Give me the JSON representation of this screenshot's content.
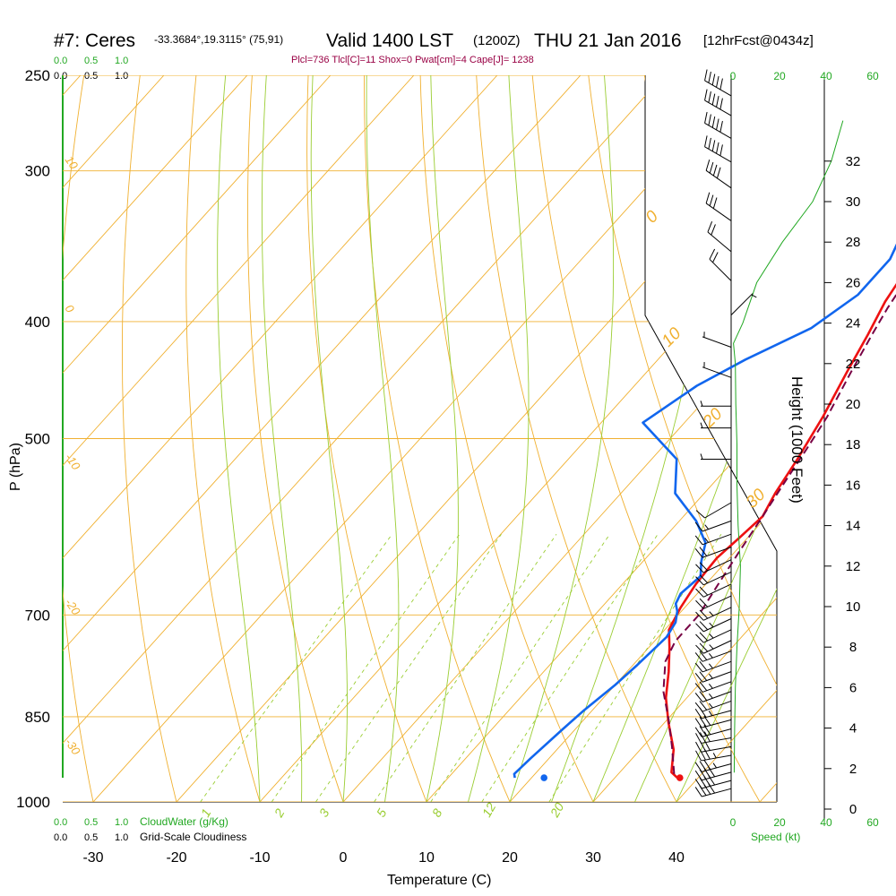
{
  "header": {
    "station": "#7: Ceres",
    "coords": "-33.3684°,19.3115° (75,91)",
    "valid": "Valid 1400 LST",
    "zulu": "(1200Z)",
    "date": "THU 21 Jan 2016",
    "fcst": "[12hrFcst@0434z]",
    "indices": "Plcl=736 Tlcl[C]=11 Shox=0 Pwat[cm]=4 Cape[J]= 1238"
  },
  "labels": {
    "cw_top_0": "0.0",
    "cw_top_1": "0.5",
    "cw_top_2": "1.0",
    "cl_top_0": "0.0",
    "cl_top_1": "0.5",
    "cl_top_2": "1.0",
    "cw_bot_0": "0.0",
    "cw_bot_1": "0.5",
    "cw_bot_2": "1.0",
    "cw_bot_title": "CloudWater (g/Kg)",
    "cl_bot_0": "0.0",
    "cl_bot_1": "0.5",
    "cl_bot_2": "1.0",
    "cl_bot_title": "Grid-Scale Cloudiness",
    "speed_title": "Speed (kt)",
    "height_title": "Height (1000 Feet)"
  },
  "chart_data": {
    "type": "line",
    "title": "#7: Ceres  Valid 1400 LST (1200Z) THU 21 Jan 2016",
    "xlabel": "Temperature (C)",
    "ylabel": "P (hPa)",
    "x_ticks": [
      -30,
      -20,
      -10,
      0,
      10,
      20,
      30,
      40
    ],
    "pressure_ticks": [
      250,
      300,
      400,
      500,
      700,
      850,
      1000
    ],
    "pressure_range": [
      1000,
      250
    ],
    "height_ticks_kft": [
      0,
      2,
      4,
      6,
      8,
      10,
      12,
      14,
      16,
      18,
      20,
      22,
      24,
      26,
      28,
      30,
      32
    ],
    "speed_ticks_kt": [
      0,
      20,
      40,
      60
    ],
    "isotherm_labels": [
      "0",
      "10",
      "20",
      "30"
    ],
    "dry_adiabat_labels": [
      "10",
      "0",
      "-10",
      "-20",
      "-30"
    ],
    "mixing_ratio_labels": [
      "1",
      "2",
      "3",
      "5",
      "8",
      "12",
      "20"
    ],
    "series": [
      {
        "name": "Temperature",
        "color": "#ee1111",
        "points": [
          [
            37.5,
            955
          ],
          [
            36.2,
            945
          ],
          [
            34.0,
            905
          ],
          [
            30.5,
            860
          ],
          [
            27.5,
            820
          ],
          [
            25.0,
            780
          ],
          [
            22.5,
            745
          ],
          [
            20.5,
            720
          ],
          [
            19.5,
            690
          ],
          [
            18.8,
            660
          ],
          [
            18.5,
            628
          ],
          [
            19.0,
            605
          ],
          [
            19.5,
            580
          ],
          [
            18.5,
            555
          ],
          [
            17.5,
            520
          ],
          [
            16.0,
            480
          ],
          [
            14.0,
            440
          ],
          [
            12.5,
            410
          ],
          [
            11.0,
            385
          ],
          [
            10.0,
            360
          ],
          [
            9.0,
            330
          ],
          [
            6.5,
            300
          ],
          [
            4.5,
            275
          ],
          [
            3.5,
            255
          ]
        ]
      },
      {
        "name": "Dewpoint",
        "color": "#1166ee",
        "points": [
          [
            18.0,
            955
          ],
          [
            17.5,
            948
          ],
          [
            17.8,
            920
          ],
          [
            18.5,
            870
          ],
          [
            19.0,
            840
          ],
          [
            20.0,
            800
          ],
          [
            20.5,
            770
          ],
          [
            21.0,
            730
          ],
          [
            20.5,
            710
          ],
          [
            19.5,
            695
          ],
          [
            18.5,
            685
          ],
          [
            18.0,
            672
          ],
          [
            18.5,
            650
          ],
          [
            17.0,
            632
          ],
          [
            15.5,
            610
          ],
          [
            12.0,
            585
          ],
          [
            6.5,
            555
          ],
          [
            3.0,
            520
          ],
          [
            -5.0,
            485
          ],
          [
            -2.5,
            452
          ],
          [
            0.5,
            430
          ],
          [
            5.0,
            405
          ],
          [
            7.0,
            380
          ],
          [
            7.0,
            355
          ],
          [
            5.0,
            330
          ],
          [
            2.0,
            305
          ],
          [
            0.0,
            285
          ],
          [
            -0.5,
            255
          ]
        ]
      },
      {
        "name": "Parcel",
        "color": "#770044",
        "dashed": true,
        "points": [
          [
            36.7,
            948
          ],
          [
            33.5,
            900
          ],
          [
            30.2,
            855
          ],
          [
            26.5,
            810
          ],
          [
            23.5,
            765
          ],
          [
            22.5,
            736
          ],
          [
            22.5,
            700
          ],
          [
            21.5,
            660
          ],
          [
            20.5,
            620
          ],
          [
            19.5,
            580
          ],
          [
            18.5,
            545
          ],
          [
            17.5,
            510
          ],
          [
            16.5,
            480
          ],
          [
            14.5,
            440
          ],
          [
            13.0,
            410
          ],
          [
            12.0,
            390
          ],
          [
            11.0,
            365
          ],
          [
            9.0,
            330
          ],
          [
            7.5,
            300
          ],
          [
            6.5,
            278
          ],
          [
            6.0,
            260
          ]
        ]
      }
    ],
    "surface_points": [
      {
        "name": "Surface temperature",
        "color": "#ee1111",
        "t": 37.8,
        "p": 955
      },
      {
        "name": "Surface dewpoint",
        "color": "#1166ee",
        "t": 21.5,
        "p": 955
      }
    ],
    "wind_speed_profile": {
      "units": "kt",
      "color": "#22a822",
      "points": [
        [
          1.3,
          1.8
        ],
        [
          1.5,
          4
        ],
        [
          1.8,
          6
        ],
        [
          2.5,
          8
        ],
        [
          3.5,
          10
        ],
        [
          4.0,
          12
        ],
        [
          3.0,
          14
        ],
        [
          2.5,
          16
        ],
        [
          2.5,
          18
        ],
        [
          2.0,
          20
        ],
        [
          1.8,
          22
        ],
        [
          1.0,
          23
        ],
        [
          5.0,
          24
        ],
        [
          11.0,
          26
        ],
        [
          22.0,
          28
        ],
        [
          35.0,
          30
        ],
        [
          43.0,
          32
        ],
        [
          48.0,
          34
        ]
      ]
    },
    "wind_barbs": [
      {
        "p": 975,
        "dir": 255,
        "spd": 40
      },
      {
        "p": 960,
        "dir": 255,
        "spd": 40
      },
      {
        "p": 945,
        "dir": 255,
        "spd": 40
      },
      {
        "p": 930,
        "dir": 255,
        "spd": 35
      },
      {
        "p": 915,
        "dir": 260,
        "spd": 35
      },
      {
        "p": 900,
        "dir": 260,
        "spd": 30
      },
      {
        "p": 885,
        "dir": 260,
        "spd": 30
      },
      {
        "p": 870,
        "dir": 255,
        "spd": 30
      },
      {
        "p": 855,
        "dir": 255,
        "spd": 30
      },
      {
        "p": 840,
        "dir": 255,
        "spd": 25
      },
      {
        "p": 825,
        "dir": 250,
        "spd": 25
      },
      {
        "p": 810,
        "dir": 250,
        "spd": 25
      },
      {
        "p": 795,
        "dir": 250,
        "spd": 25
      },
      {
        "p": 780,
        "dir": 250,
        "spd": 25
      },
      {
        "p": 765,
        "dir": 250,
        "spd": 25
      },
      {
        "p": 750,
        "dir": 250,
        "spd": 25
      },
      {
        "p": 735,
        "dir": 245,
        "spd": 25
      },
      {
        "p": 720,
        "dir": 245,
        "spd": 25
      },
      {
        "p": 705,
        "dir": 245,
        "spd": 25
      },
      {
        "p": 690,
        "dir": 245,
        "spd": 25
      },
      {
        "p": 675,
        "dir": 245,
        "spd": 20
      },
      {
        "p": 660,
        "dir": 245,
        "spd": 20
      },
      {
        "p": 645,
        "dir": 245,
        "spd": 20
      },
      {
        "p": 630,
        "dir": 245,
        "spd": 20
      },
      {
        "p": 615,
        "dir": 250,
        "spd": 20
      },
      {
        "p": 600,
        "dir": 250,
        "spd": 15
      },
      {
        "p": 585,
        "dir": 250,
        "spd": 15
      },
      {
        "p": 565,
        "dir": 240,
        "spd": 10
      },
      {
        "p": 520,
        "dir": 270,
        "spd": 5
      },
      {
        "p": 490,
        "dir": 270,
        "spd": 5
      },
      {
        "p": 470,
        "dir": 270,
        "spd": 5
      },
      {
        "p": 445,
        "dir": 290,
        "spd": 5
      },
      {
        "p": 420,
        "dir": 290,
        "spd": 5
      },
      {
        "p": 395,
        "dir": 45,
        "spd": 5
      },
      {
        "p": 370,
        "dir": 315,
        "spd": 20
      },
      {
        "p": 350,
        "dir": 310,
        "spd": 20
      },
      {
        "p": 330,
        "dir": 305,
        "spd": 30
      },
      {
        "p": 310,
        "dir": 305,
        "spd": 40
      },
      {
        "p": 295,
        "dir": 300,
        "spd": 50
      },
      {
        "p": 282,
        "dir": 300,
        "spd": 50
      },
      {
        "p": 270,
        "dir": 300,
        "spd": 50
      },
      {
        "p": 260,
        "dir": 300,
        "spd": 50
      }
    ]
  }
}
